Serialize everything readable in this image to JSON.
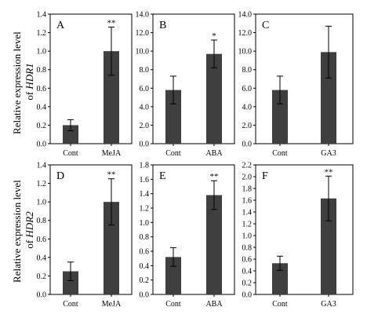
{
  "y_axis_labels": {
    "row1": {
      "line1": "Relative expression level",
      "line2_prefix": "of ",
      "line2_gene": "HDR1"
    },
    "row2": {
      "line1": "Relative expression level",
      "line2_prefix": "of ",
      "line2_gene": "HDR2"
    }
  },
  "colors": {
    "bar": "#3f3f3f",
    "axis": "#000000"
  },
  "chart_data": [
    {
      "type": "bar",
      "panel": "A",
      "categories": [
        "Cont",
        "MeJA"
      ],
      "values": [
        0.2,
        1.0
      ],
      "errors": [
        0.06,
        0.26
      ],
      "significance": [
        "",
        "**"
      ],
      "ylim": [
        0,
        1.4
      ],
      "yticks": [
        "0.0",
        "0.2",
        "0.4",
        "0.6",
        "0.8",
        "1.0",
        "1.2",
        "1.4"
      ]
    },
    {
      "type": "bar",
      "panel": "B",
      "categories": [
        "Cont",
        "ABA"
      ],
      "values": [
        5.8,
        9.7
      ],
      "errors": [
        1.5,
        1.5
      ],
      "significance": [
        "",
        "*"
      ],
      "ylim": [
        0,
        14
      ],
      "yticks": [
        "0.0",
        "2.0",
        "4.0",
        "6.0",
        "8.0",
        "10.0",
        "12.0",
        "14.0"
      ]
    },
    {
      "type": "bar",
      "panel": "C",
      "categories": [
        "Cont",
        "GA3"
      ],
      "values": [
        5.8,
        9.9
      ],
      "errors": [
        1.5,
        2.8
      ],
      "significance": [
        "",
        ""
      ],
      "ylim": [
        0,
        14
      ],
      "yticks": [
        "0.0",
        "2.0",
        "4.0",
        "6.0",
        "8.0",
        "10.0",
        "12.0",
        "14.0"
      ]
    },
    {
      "type": "bar",
      "panel": "D",
      "categories": [
        "Cont",
        "MeJA"
      ],
      "values": [
        0.25,
        1.0
      ],
      "errors": [
        0.1,
        0.25
      ],
      "significance": [
        "",
        "**"
      ],
      "ylim": [
        0,
        1.4
      ],
      "yticks": [
        "0.0",
        "0.2",
        "0.4",
        "0.6",
        "0.8",
        "1.0",
        "1.2",
        "1.4"
      ]
    },
    {
      "type": "bar",
      "panel": "E",
      "categories": [
        "Cont",
        "ABA"
      ],
      "values": [
        0.52,
        1.38
      ],
      "errors": [
        0.13,
        0.2
      ],
      "significance": [
        "",
        "**"
      ],
      "ylim": [
        0,
        1.8
      ],
      "yticks": [
        "0.0",
        "0.2",
        "0.4",
        "0.6",
        "0.8",
        "1.0",
        "1.2",
        "1.4",
        "1.6",
        "1.8"
      ]
    },
    {
      "type": "bar",
      "panel": "F",
      "categories": [
        "Cont",
        "GA3"
      ],
      "values": [
        0.53,
        1.63
      ],
      "errors": [
        0.12,
        0.38
      ],
      "significance": [
        "",
        "**"
      ],
      "ylim": [
        0,
        2.2
      ],
      "yticks": [
        "0.0",
        "0.2",
        "0.4",
        "0.6",
        "0.8",
        "1.0",
        "1.2",
        "1.4",
        "1.6",
        "1.8",
        "2.0",
        "2.2"
      ]
    }
  ]
}
